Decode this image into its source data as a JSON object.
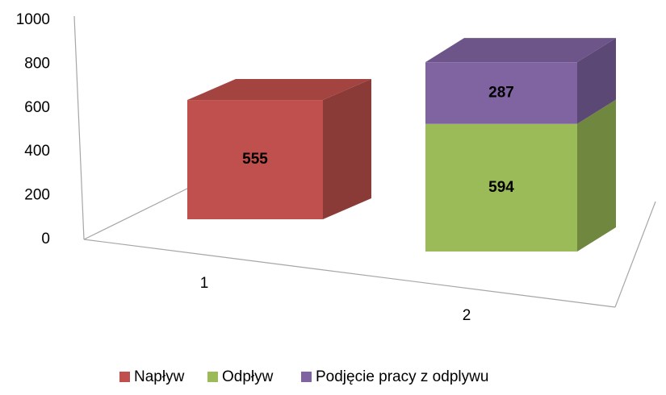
{
  "chart_data": {
    "type": "bar3d_stacked",
    "categories": [
      "1",
      "2"
    ],
    "series": [
      {
        "name": "Napływ",
        "color": "#c0504d",
        "values": [
          555,
          null
        ]
      },
      {
        "name": "Odpływ",
        "color": "#9bbb59",
        "values": [
          null,
          594
        ]
      },
      {
        "name": "Podjęcie pracy z odplywu",
        "color": "#8064a2",
        "values": [
          null,
          287
        ]
      }
    ],
    "ylim": [
      0,
      1000
    ],
    "yticks": [
      0,
      200,
      400,
      600,
      800,
      1000
    ],
    "grid": false,
    "legend": "bottom"
  }
}
